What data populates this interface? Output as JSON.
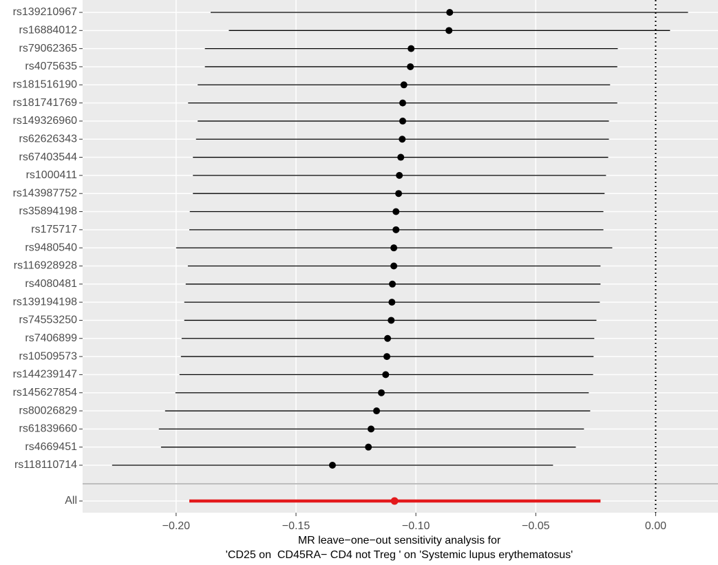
{
  "chart_data": {
    "type": "forest",
    "xlabel": [
      "MR leave−one−out sensitivity analysis for",
      "'CD25 on  CD45RA− CD4 not Treg ' on 'Systemic lupus erythematosus'"
    ],
    "categories": [
      "rs139210967",
      "rs16884012",
      "rs79062365",
      "rs4075635",
      "rs181516190",
      "rs181741769",
      "rs149326960",
      "rs62626343",
      "rs67403544",
      "rs1000411",
      "rs143987752",
      "rs35894198",
      "rs175717",
      "rs9480540",
      "rs116928928",
      "rs4080481",
      "rs139194198",
      "rs74553250",
      "rs7406899",
      "rs10509573",
      "rs144239147",
      "rs145627854",
      "rs80026829",
      "rs61839660",
      "rs4669451",
      "rs118110714"
    ],
    "values": [
      -0.0859,
      -0.0862,
      -0.102,
      -0.1023,
      -0.105,
      -0.1055,
      -0.1055,
      -0.1057,
      -0.1063,
      -0.1069,
      -0.1072,
      -0.1083,
      -0.1083,
      -0.1092,
      -0.1092,
      -0.1098,
      -0.11,
      -0.1103,
      -0.1118,
      -0.1121,
      -0.1126,
      -0.1144,
      -0.1164,
      -0.1187,
      -0.1198,
      -0.1348
    ],
    "lower": [
      -0.1856,
      -0.178,
      -0.188,
      -0.188,
      -0.191,
      -0.195,
      -0.191,
      -0.1917,
      -0.193,
      -0.193,
      -0.193,
      -0.1943,
      -0.1945,
      -0.2,
      -0.1951,
      -0.196,
      -0.1966,
      -0.1966,
      -0.1977,
      -0.198,
      -0.1986,
      -0.2003,
      -0.2046,
      -0.2072,
      -0.2063,
      -0.2267
    ],
    "upper": [
      0.0135,
      0.006,
      -0.0158,
      -0.016,
      -0.019,
      -0.016,
      -0.0195,
      -0.0195,
      -0.0198,
      -0.0207,
      -0.0213,
      -0.0218,
      -0.0218,
      -0.0181,
      -0.023,
      -0.023,
      -0.0233,
      -0.0247,
      -0.0256,
      -0.0259,
      -0.0261,
      -0.0279,
      -0.0273,
      -0.0299,
      -0.0333,
      -0.0428
    ],
    "color": "#000000",
    "summary": {
      "label": "All",
      "value": -0.1089,
      "lower": -0.1945,
      "upper": -0.023,
      "color": "#e31a1c"
    },
    "reference_line": 0,
    "xlim": [
      -0.239,
      0.026
    ],
    "xticks": [
      {
        "value": -0.2,
        "label": "−0.20"
      },
      {
        "value": -0.15,
        "label": "−0.15"
      },
      {
        "value": -0.1,
        "label": "−0.10"
      },
      {
        "value": -0.05,
        "label": "−0.05"
      },
      {
        "value": 0,
        "label": "0.00"
      }
    ],
    "grid": true
  }
}
